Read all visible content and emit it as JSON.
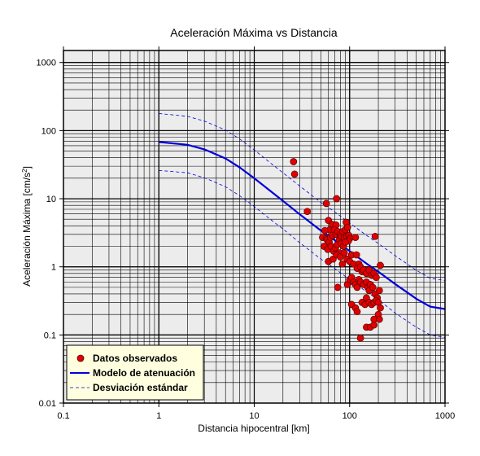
{
  "chart_data": {
    "type": "scatter",
    "title": "Aceleración Máxima vs Distancia",
    "xlabel": "Distancia hipocentral [km]",
    "ylabel_main": "Aceleración Máxima [cm/s",
    "ylabel_sup": "2",
    "ylabel_end": "]",
    "xscale": "log",
    "yscale": "log",
    "xlim": [
      0.1,
      1000
    ],
    "ylim": [
      0.01,
      1500
    ],
    "x_ticks": [
      {
        "value": 0.1,
        "label": "0.1"
      },
      {
        "value": 1,
        "label": "1"
      },
      {
        "value": 10,
        "label": "10"
      },
      {
        "value": 100,
        "label": "100"
      },
      {
        "value": 1000,
        "label": "1000"
      }
    ],
    "y_ticks": [
      {
        "value": 0.01,
        "label": "0.01"
      },
      {
        "value": 0.1,
        "label": "0.1"
      },
      {
        "value": 1,
        "label": "1"
      },
      {
        "value": 10,
        "label": "10"
      },
      {
        "value": 100,
        "label": "100"
      },
      {
        "value": 1000,
        "label": "1000"
      }
    ],
    "grid": true,
    "legend_position": "bottom-left",
    "legend": [
      {
        "label": "Datos observados",
        "kind": "marker"
      },
      {
        "label": "Modelo de atenuación",
        "kind": "line"
      },
      {
        "label": "Desviación estándar",
        "kind": "dashed"
      }
    ],
    "series": [
      {
        "name": "Datos observados",
        "kind": "scatter",
        "color": "#e00000",
        "points": [
          [
            25.8,
            35
          ],
          [
            26.5,
            23
          ],
          [
            36,
            6.5
          ],
          [
            57,
            8.5
          ],
          [
            73,
            10
          ],
          [
            60,
            4.8
          ],
          [
            62,
            3.5
          ],
          [
            66,
            4.2
          ],
          [
            72,
            4.1
          ],
          [
            52,
            2.7
          ],
          [
            55,
            3.4
          ],
          [
            57,
            2.6
          ],
          [
            58,
            2.5
          ],
          [
            61,
            2.3
          ],
          [
            63,
            2.7
          ],
          [
            66,
            2.9
          ],
          [
            69,
            3.5
          ],
          [
            72,
            3.0
          ],
          [
            75,
            3.3
          ],
          [
            78,
            2.5
          ],
          [
            80,
            3.0
          ],
          [
            82,
            2.8
          ],
          [
            85,
            3.3
          ],
          [
            88,
            2.7
          ],
          [
            90,
            3.5
          ],
          [
            92,
            4.5
          ],
          [
            93,
            2.8
          ],
          [
            95,
            3.8
          ],
          [
            98,
            2.9
          ],
          [
            100,
            2.6
          ],
          [
            97,
            2.4
          ],
          [
            54,
            2.0
          ],
          [
            59,
            1.8
          ],
          [
            64,
            2.0
          ],
          [
            68,
            1.7
          ],
          [
            71,
            1.9
          ],
          [
            74,
            2.1
          ],
          [
            78,
            1.6
          ],
          [
            82,
            2.2
          ],
          [
            86,
            2.0
          ],
          [
            90,
            2.3
          ],
          [
            60,
            1.2
          ],
          [
            67,
            1.3
          ],
          [
            73,
            1.5
          ],
          [
            80,
            1.4
          ],
          [
            84,
            1.1
          ],
          [
            88,
            1.6
          ],
          [
            94,
            1.3
          ],
          [
            100,
            1.2
          ],
          [
            105,
            1.5
          ],
          [
            110,
            1.1
          ],
          [
            115,
            2.7
          ],
          [
            118,
            1.5
          ],
          [
            125,
            1.1
          ],
          [
            120,
            0.95
          ],
          [
            130,
            1.0
          ],
          [
            135,
            0.85
          ],
          [
            140,
            0.9
          ],
          [
            150,
            0.8
          ],
          [
            160,
            0.9
          ],
          [
            170,
            0.75
          ],
          [
            180,
            0.8
          ],
          [
            190,
            0.7
          ],
          [
            210,
            1.05
          ],
          [
            185,
            2.8
          ],
          [
            75,
            0.5
          ],
          [
            95,
            0.55
          ],
          [
            100,
            0.65
          ],
          [
            105,
            0.7
          ],
          [
            110,
            0.6
          ],
          [
            115,
            0.55
          ],
          [
            120,
            0.5
          ],
          [
            125,
            0.65
          ],
          [
            130,
            0.6
          ],
          [
            140,
            0.55
          ],
          [
            150,
            0.6
          ],
          [
            155,
            0.5
          ],
          [
            160,
            0.45
          ],
          [
            165,
            0.55
          ],
          [
            175,
            0.5
          ],
          [
            185,
            0.4
          ],
          [
            195,
            0.35
          ],
          [
            205,
            0.45
          ],
          [
            105,
            0.28
          ],
          [
            115,
            0.25
          ],
          [
            120,
            0.22
          ],
          [
            135,
            0.3
          ],
          [
            145,
            0.28
          ],
          [
            150,
            0.35
          ],
          [
            160,
            0.3
          ],
          [
            170,
            0.28
          ],
          [
            180,
            0.3
          ],
          [
            190,
            0.32
          ],
          [
            200,
            0.3
          ],
          [
            210,
            0.25
          ],
          [
            200,
            0.2
          ],
          [
            180,
            0.17
          ],
          [
            205,
            0.17
          ],
          [
            150,
            0.13
          ],
          [
            165,
            0.13
          ],
          [
            180,
            0.14
          ],
          [
            130,
            0.09
          ]
        ]
      },
      {
        "name": "Modelo de atenuación",
        "kind": "line",
        "color": "#0000dd",
        "points": [
          [
            1,
            68
          ],
          [
            2,
            62
          ],
          [
            3,
            53
          ],
          [
            5,
            39
          ],
          [
            7,
            29
          ],
          [
            10,
            20
          ],
          [
            15,
            12.8
          ],
          [
            20,
            9.3
          ],
          [
            30,
            5.9
          ],
          [
            50,
            3.4
          ],
          [
            70,
            2.45
          ],
          [
            100,
            1.7
          ],
          [
            150,
            1.12
          ],
          [
            200,
            0.85
          ],
          [
            300,
            0.56
          ],
          [
            500,
            0.34
          ],
          [
            700,
            0.26
          ],
          [
            1000,
            0.24
          ]
        ]
      },
      {
        "name": "Desviación estándar superior",
        "kind": "dashed",
        "color": "#0000dd",
        "points": [
          [
            1,
            178
          ],
          [
            2,
            162
          ],
          [
            3,
            138
          ],
          [
            5,
            102
          ],
          [
            7,
            76
          ],
          [
            10,
            52
          ],
          [
            15,
            33
          ],
          [
            20,
            24
          ],
          [
            30,
            15.4
          ],
          [
            50,
            8.8
          ],
          [
            70,
            6.4
          ],
          [
            100,
            4.4
          ],
          [
            150,
            2.9
          ],
          [
            200,
            2.2
          ],
          [
            300,
            1.46
          ],
          [
            500,
            0.89
          ],
          [
            700,
            0.68
          ],
          [
            1000,
            0.63
          ]
        ]
      },
      {
        "name": "Desviación estándar inferior",
        "kind": "dashed",
        "color": "#0000dd",
        "points": [
          [
            1,
            26
          ],
          [
            2,
            24
          ],
          [
            3,
            20.3
          ],
          [
            5,
            15
          ],
          [
            7,
            11.1
          ],
          [
            10,
            7.7
          ],
          [
            15,
            4.9
          ],
          [
            20,
            3.6
          ],
          [
            30,
            2.26
          ],
          [
            50,
            1.3
          ],
          [
            70,
            0.94
          ],
          [
            100,
            0.65
          ],
          [
            150,
            0.43
          ],
          [
            200,
            0.33
          ],
          [
            300,
            0.21
          ],
          [
            500,
            0.13
          ],
          [
            700,
            0.1
          ],
          [
            1000,
            0.092
          ]
        ]
      }
    ]
  }
}
